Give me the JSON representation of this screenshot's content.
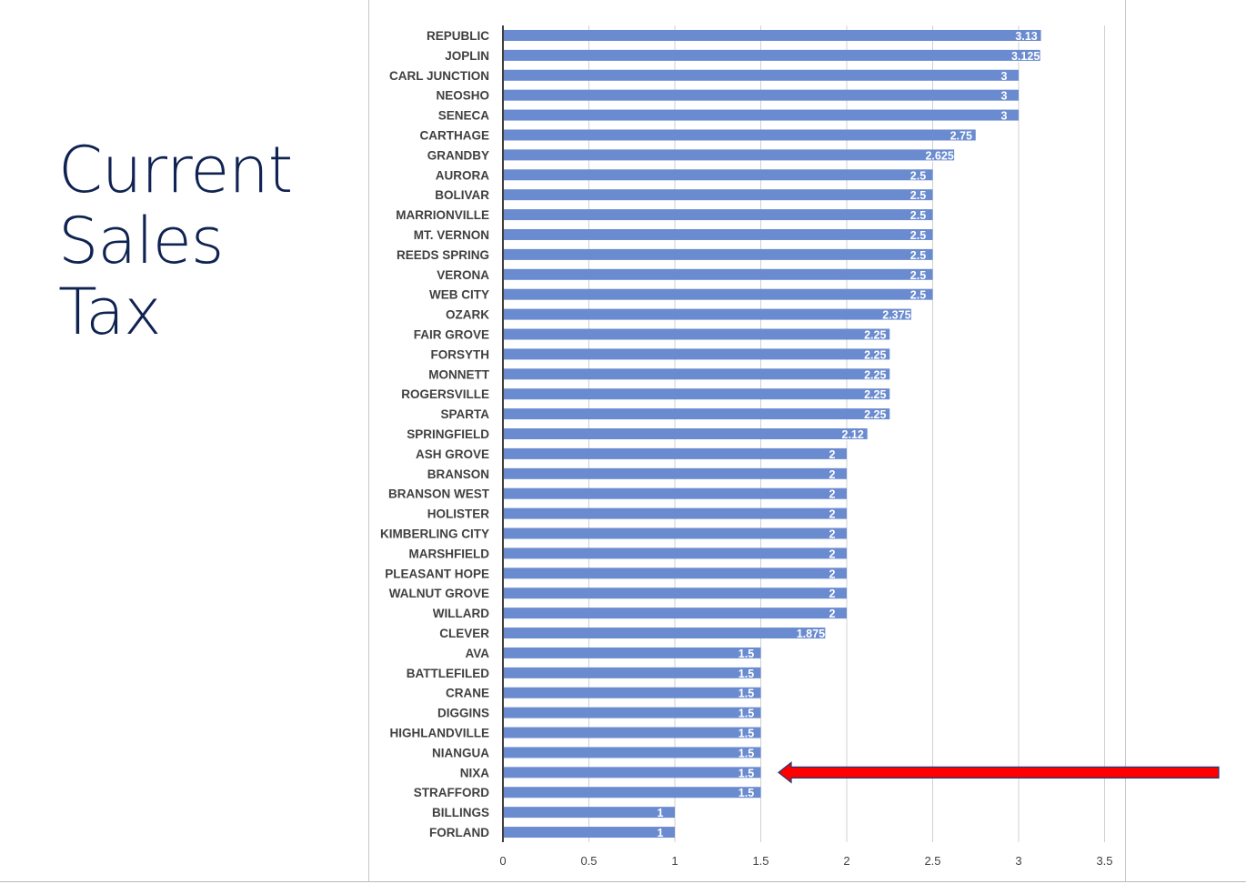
{
  "slide": {
    "title_lines": [
      "Current",
      "Sales",
      "Tax"
    ]
  },
  "colors": {
    "title": "#0f2352",
    "bar": "#6a8bcf",
    "grid": "#d0d0d0",
    "axis": "#404040",
    "arrow": "#ff0000",
    "arrow_outline": "#1f3a7a"
  },
  "annotation": {
    "type": "arrow",
    "points_to": "NIXA",
    "direction": "left"
  },
  "chart_data": {
    "type": "bar",
    "orientation": "horizontal",
    "categories": [
      "REPUBLIC",
      "JOPLIN",
      "CARL JUNCTION",
      "NEOSHO",
      "SENECA",
      "CARTHAGE",
      "GRANDBY",
      "AURORA",
      "BOLIVAR",
      "MARRIONVILLE",
      "MT. VERNON",
      "REEDS SPRING",
      "VERONA",
      "WEB CITY",
      "OZARK",
      "FAIR GROVE",
      "FORSYTH",
      "MONNETT",
      "ROGERSVILLE",
      "SPARTA",
      "SPRINGFIELD",
      "ASH GROVE",
      "BRANSON",
      "BRANSON WEST",
      "HOLISTER",
      "KIMBERLING CITY",
      "MARSHFIELD",
      "PLEASANT HOPE",
      "WALNUT GROVE",
      "WILLARD",
      "CLEVER",
      "AVA",
      "BATTLEFILED",
      "CRANE",
      "DIGGINS",
      "HIGHLANDVILLE",
      "NIANGUA",
      "NIXA",
      "STRAFFORD",
      "BILLINGS",
      "FORLAND"
    ],
    "values": [
      3.13,
      3.125,
      3,
      3,
      3,
      2.75,
      2.625,
      2.5,
      2.5,
      2.5,
      2.5,
      2.5,
      2.5,
      2.5,
      2.375,
      2.25,
      2.25,
      2.25,
      2.25,
      2.25,
      2.12,
      2,
      2,
      2,
      2,
      2,
      2,
      2,
      2,
      2,
      1.875,
      1.5,
      1.5,
      1.5,
      1.5,
      1.5,
      1.5,
      1.5,
      1.5,
      1,
      1
    ],
    "value_labels": [
      "3.13",
      "3.125",
      "3",
      "3",
      "3",
      "2.75",
      "2.625",
      "2.5",
      "2.5",
      "2.5",
      "2.5",
      "2.5",
      "2.5",
      "2.5",
      "2.375",
      "2.25",
      "2.25",
      "2.25",
      "2.25",
      "2.25",
      "2.12",
      "2",
      "2",
      "2",
      "2",
      "2",
      "2",
      "2",
      "2",
      "2",
      "1.875",
      "1.5",
      "1.5",
      "1.5",
      "1.5",
      "1.5",
      "1.5",
      "1.5",
      "1.5",
      "1",
      "1"
    ],
    "xlim": [
      0,
      3.5
    ],
    "xticks": [
      "0",
      "0.5",
      "1",
      "1.5",
      "2",
      "2.5",
      "3",
      "3.5"
    ],
    "grid": true,
    "legend": "none"
  }
}
